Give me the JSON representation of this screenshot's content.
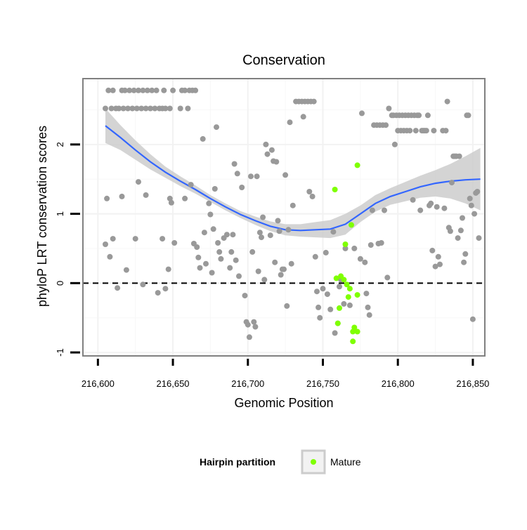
{
  "chart_data": {
    "type": "scatter",
    "title": "Conservation",
    "xlabel": "Genomic Position",
    "ylabel": "phyloP LRT conservation scores",
    "xlim": [
      216590,
      216858
    ],
    "ylim": [
      -1.05,
      2.95
    ],
    "x_ticks": [
      216600,
      216650,
      216700,
      216750,
      216800,
      216850
    ],
    "x_tick_labels": [
      "216,600",
      "216,650",
      "216,700",
      "216,750",
      "216,800",
      "216,850"
    ],
    "y_ticks": [
      -1,
      0,
      1,
      2
    ],
    "y_tick_labels": [
      "-1",
      "0",
      "1",
      "2"
    ],
    "reference_line_y": 0,
    "grid": true,
    "legend": {
      "title": "Hairpin partition",
      "placement": "bottom",
      "entries": [
        "Mature"
      ]
    },
    "colors": {
      "points": "#999999",
      "mature": "#7fff00",
      "smooth_line": "#3366ff",
      "confidence_band": "#cccccc",
      "panel_border": "#808080",
      "grid": "#f2f2f2",
      "reference_line": "#000000"
    },
    "series": [
      {
        "points": [
          [
            216605,
            2.52
          ],
          [
            216607,
            2.78
          ],
          [
            216609,
            2.52
          ],
          [
            216610,
            2.78
          ],
          [
            216612,
            2.52
          ],
          [
            216614,
            2.52
          ],
          [
            216616,
            2.78
          ],
          [
            216617,
            2.52
          ],
          [
            216618,
            2.78
          ],
          [
            216620,
            2.52
          ],
          [
            216621,
            2.78
          ],
          [
            216623,
            2.52
          ],
          [
            216624,
            2.78
          ],
          [
            216626,
            2.52
          ],
          [
            216627,
            2.78
          ],
          [
            216629,
            2.52
          ],
          [
            216630,
            2.78
          ],
          [
            216632,
            2.52
          ],
          [
            216633,
            2.78
          ],
          [
            216635,
            2.52
          ],
          [
            216636,
            2.78
          ],
          [
            216638,
            2.52
          ],
          [
            216639,
            2.78
          ],
          [
            216641,
            2.52
          ],
          [
            216643,
            2.52
          ],
          [
            216644,
            2.78
          ],
          [
            216645,
            2.52
          ],
          [
            216648,
            2.52
          ],
          [
            216650,
            2.78
          ],
          [
            216655,
            2.52
          ],
          [
            216656,
            2.78
          ],
          [
            216658,
            2.78
          ],
          [
            216660,
            2.52
          ],
          [
            216661,
            2.78
          ],
          [
            216663,
            2.78
          ],
          [
            216665,
            2.78
          ],
          [
            216606,
            1.22
          ],
          [
            216605,
            0.56
          ],
          [
            216608,
            0.38
          ],
          [
            216610,
            0.64
          ],
          [
            216613,
            -0.07
          ],
          [
            216616,
            1.25
          ],
          [
            216619,
            0.19
          ],
          [
            216625,
            0.64
          ],
          [
            216627,
            1.46
          ],
          [
            216630,
            -0.02
          ],
          [
            216632,
            1.27
          ],
          [
            216640,
            -0.14
          ],
          [
            216643,
            0.64
          ],
          [
            216645,
            -0.08
          ],
          [
            216647,
            0.2
          ],
          [
            216648,
            1.22
          ],
          [
            216649,
            1.16
          ],
          [
            216651,
            0.58
          ],
          [
            216658,
            1.22
          ],
          [
            216662,
            1.42
          ],
          [
            216664,
            0.57
          ],
          [
            216666,
            0.52
          ],
          [
            216667,
            0.37
          ],
          [
            216668,
            0.22
          ],
          [
            216670,
            2.08
          ],
          [
            216671,
            0.73
          ],
          [
            216672,
            0.28
          ],
          [
            216674,
            1.15
          ],
          [
            216675,
            0.99
          ],
          [
            216676,
            0.15
          ],
          [
            216677,
            0.78
          ],
          [
            216678,
            1.36
          ],
          [
            216679,
            2.25
          ],
          [
            216680,
            0.58
          ],
          [
            216681,
            0.45
          ],
          [
            216682,
            0.35
          ],
          [
            216684,
            0.65
          ],
          [
            216686,
            0.7
          ],
          [
            216688,
            0.22
          ],
          [
            216689,
            0.45
          ],
          [
            216690,
            0.7
          ],
          [
            216691,
            1.72
          ],
          [
            216692,
            0.33
          ],
          [
            216693,
            1.58
          ],
          [
            216694,
            0.1
          ],
          [
            216696,
            1.38
          ],
          [
            216698,
            -0.18
          ],
          [
            216699,
            -0.56
          ],
          [
            216700,
            -0.6
          ],
          [
            216701,
            -0.78
          ],
          [
            216702,
            1.54
          ],
          [
            216703,
            0.45
          ],
          [
            216704,
            -0.56
          ],
          [
            216705,
            -0.63
          ],
          [
            216706,
            1.54
          ],
          [
            216707,
            0.17
          ],
          [
            216708,
            0.73
          ],
          [
            216709,
            0.66
          ],
          [
            216710,
            0.95
          ],
          [
            216711,
            0.05
          ],
          [
            216712,
            2.0
          ],
          [
            216713,
            1.86
          ],
          [
            216715,
            0.69
          ],
          [
            216716,
            1.92
          ],
          [
            216717,
            1.76
          ],
          [
            216718,
            0.3
          ],
          [
            216719,
            1.75
          ],
          [
            216720,
            0.9
          ],
          [
            216721,
            0.75
          ],
          [
            216722,
            0.12
          ],
          [
            216723,
            0.2
          ],
          [
            216724,
            0.2
          ],
          [
            216725,
            1.56
          ],
          [
            216726,
            -0.33
          ],
          [
            216727,
            0.77
          ],
          [
            216728,
            2.32
          ],
          [
            216729,
            0.28
          ],
          [
            216730,
            1.12
          ],
          [
            216732,
            2.62
          ],
          [
            216734,
            2.62
          ],
          [
            216736,
            2.62
          ],
          [
            216737,
            2.4
          ],
          [
            216738,
            2.62
          ],
          [
            216740,
            2.62
          ],
          [
            216741,
            1.32
          ],
          [
            216742,
            2.62
          ],
          [
            216743,
            1.25
          ],
          [
            216744,
            2.62
          ],
          [
            216745,
            0.38
          ],
          [
            216746,
            -0.12
          ],
          [
            216747,
            -0.35
          ],
          [
            216748,
            -0.5
          ],
          [
            216750,
            -0.08
          ],
          [
            216752,
            0.44
          ],
          [
            216753,
            -0.16
          ],
          [
            216755,
            -0.38
          ],
          [
            216757,
            0.74
          ],
          [
            216758,
            -0.72
          ],
          [
            216760,
            -0.58
          ],
          [
            216761,
            -0.05
          ],
          [
            216762,
            0.05
          ],
          [
            216764,
            -0.3
          ],
          [
            216765,
            0.5
          ],
          [
            216768,
            -0.32
          ],
          [
            216771,
            0.5
          ],
          [
            216775,
            0.35
          ],
          [
            216776,
            2.45
          ],
          [
            216778,
            0.3
          ],
          [
            216779,
            -0.15
          ],
          [
            216780,
            -0.35
          ],
          [
            216781,
            -0.46
          ],
          [
            216782,
            0.55
          ],
          [
            216783,
            1.05
          ],
          [
            216784,
            2.28
          ],
          [
            216786,
            2.28
          ],
          [
            216787,
            0.57
          ],
          [
            216788,
            2.28
          ],
          [
            216789,
            0.58
          ],
          [
            216790,
            2.28
          ],
          [
            216791,
            1.05
          ],
          [
            216792,
            2.28
          ],
          [
            216793,
            0.08
          ],
          [
            216794,
            2.52
          ],
          [
            216796,
            2.42
          ],
          [
            216797,
            2.42
          ],
          [
            216798,
            2.0
          ],
          [
            216799,
            2.42
          ],
          [
            216800,
            2.2
          ],
          [
            216801,
            2.42
          ],
          [
            216802,
            2.2
          ],
          [
            216803,
            2.42
          ],
          [
            216804,
            2.2
          ],
          [
            216805,
            2.42
          ],
          [
            216806,
            2.2
          ],
          [
            216807,
            2.42
          ],
          [
            216808,
            2.2
          ],
          [
            216809,
            2.42
          ],
          [
            216810,
            1.2
          ],
          [
            216811,
            2.42
          ],
          [
            216812,
            2.2
          ],
          [
            216813,
            2.42
          ],
          [
            216814,
            2.42
          ],
          [
            216815,
            1.05
          ],
          [
            216816,
            2.2
          ],
          [
            216817,
            2.2
          ],
          [
            216818,
            2.2
          ],
          [
            216819,
            2.2
          ],
          [
            216820,
            2.42
          ],
          [
            216821,
            1.12
          ],
          [
            216822,
            1.15
          ],
          [
            216823,
            0.47
          ],
          [
            216824,
            2.2
          ],
          [
            216825,
            0.24
          ],
          [
            216826,
            1.1
          ],
          [
            216827,
            0.38
          ],
          [
            216828,
            0.27
          ],
          [
            216830,
            2.2
          ],
          [
            216831,
            1.08
          ],
          [
            216832,
            2.2
          ],
          [
            216833,
            2.62
          ],
          [
            216834,
            0.8
          ],
          [
            216835,
            0.75
          ],
          [
            216836,
            1.45
          ],
          [
            216837,
            1.83
          ],
          [
            216838,
            1.83
          ],
          [
            216839,
            1.83
          ],
          [
            216840,
            0.65
          ],
          [
            216841,
            1.83
          ],
          [
            216842,
            0.76
          ],
          [
            216843,
            0.94
          ],
          [
            216844,
            0.3
          ],
          [
            216845,
            0.42
          ],
          [
            216846,
            2.42
          ],
          [
            216847,
            2.42
          ],
          [
            216848,
            1.22
          ],
          [
            216849,
            1.12
          ],
          [
            216850,
            -0.52
          ],
          [
            216851,
            1.0
          ],
          [
            216852,
            1.3
          ],
          [
            216853,
            1.32
          ],
          [
            216854,
            0.65
          ]
        ]
      },
      {
        "name": "Mature",
        "points": [
          [
            216773,
            1.7
          ],
          [
            216758,
            1.35
          ],
          [
            216769,
            0.84
          ],
          [
            216765,
            0.56
          ],
          [
            216759,
            0.07
          ],
          [
            216762,
            0.1
          ],
          [
            216764,
            0.05
          ],
          [
            216766,
            -0.02
          ],
          [
            216768,
            -0.08
          ],
          [
            216773,
            -0.17
          ],
          [
            216767,
            -0.2
          ],
          [
            216761,
            -0.36
          ],
          [
            216760,
            -0.58
          ],
          [
            216771,
            -0.64
          ],
          [
            216770,
            -0.7
          ],
          [
            216773,
            -0.7
          ],
          [
            216770,
            -0.84
          ]
        ]
      }
    ],
    "smooth_fit": {
      "x": [
        216605,
        216615,
        216625,
        216635,
        216645,
        216655,
        216665,
        216675,
        216685,
        216695,
        216705,
        216715,
        216725,
        216735,
        216745,
        216755,
        216765,
        216775,
        216785,
        216795,
        216805,
        216815,
        216825,
        216835,
        216845,
        216855
      ],
      "y": [
        2.27,
        2.1,
        1.92,
        1.75,
        1.6,
        1.47,
        1.35,
        1.22,
        1.1,
        0.99,
        0.9,
        0.82,
        0.77,
        0.76,
        0.77,
        0.78,
        0.85,
        1.0,
        1.15,
        1.25,
        1.32,
        1.39,
        1.44,
        1.47,
        1.49,
        1.5
      ],
      "lower": [
        2.02,
        1.92,
        1.78,
        1.64,
        1.52,
        1.4,
        1.29,
        1.17,
        1.05,
        0.94,
        0.84,
        0.75,
        0.69,
        0.67,
        0.66,
        0.65,
        0.7,
        0.88,
        1.03,
        1.13,
        1.18,
        1.23,
        1.25,
        1.22,
        1.15,
        1.05
      ],
      "upper": [
        2.52,
        2.28,
        2.06,
        1.86,
        1.68,
        1.54,
        1.41,
        1.27,
        1.15,
        1.04,
        0.96,
        0.89,
        0.85,
        0.85,
        0.88,
        0.91,
        1.0,
        1.12,
        1.27,
        1.37,
        1.46,
        1.55,
        1.63,
        1.72,
        1.83,
        1.95
      ]
    }
  }
}
